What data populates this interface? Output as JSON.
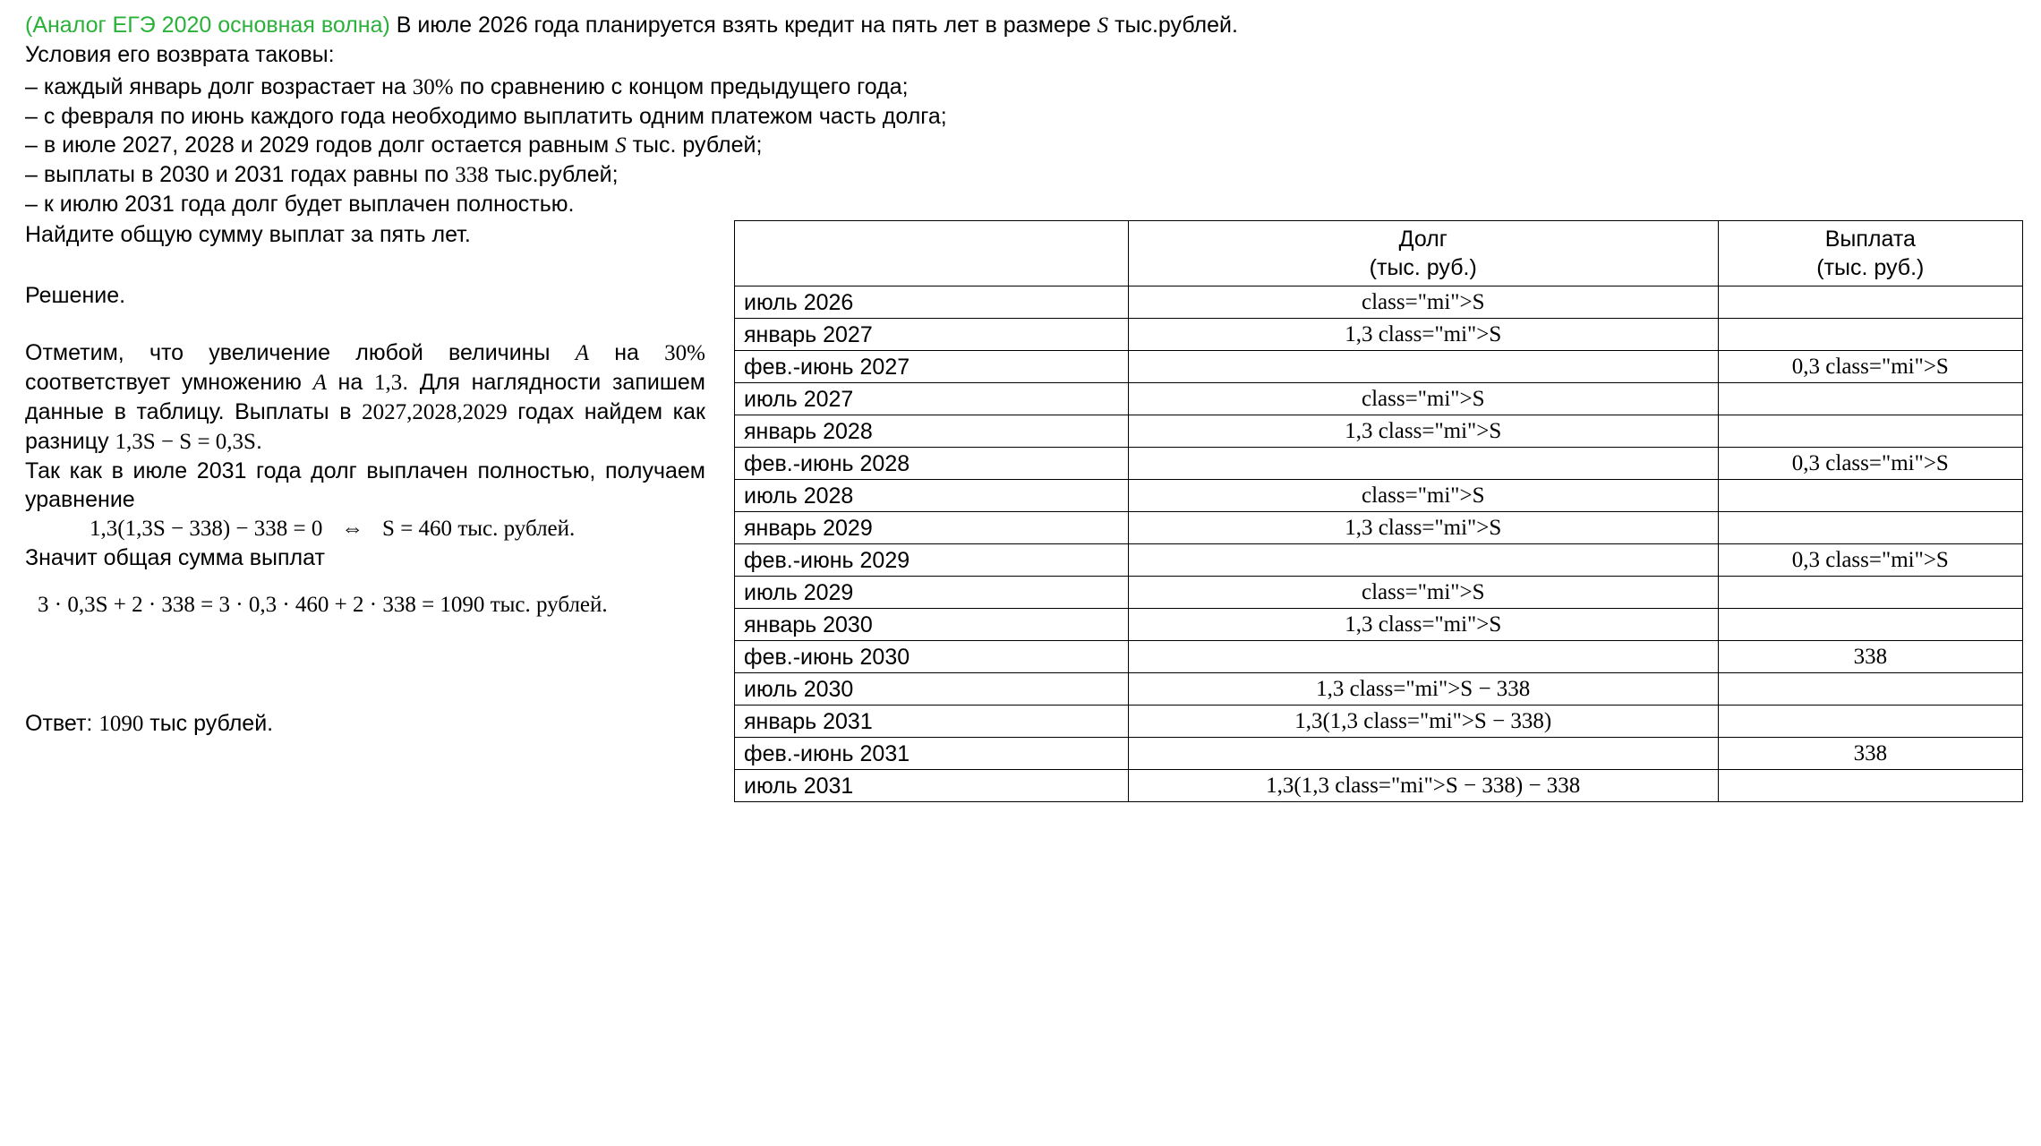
{
  "prefix": "(Аналог ЕГЭ 2020 основная волна)",
  "intro_a": "В июле 2026 года планируется взять кредит на пять лет в размере ",
  "intro_s": "S",
  "intro_b": " тыс.рублей.",
  "cond_label": "Условия его возврата таковы:",
  "conds": {
    "c1a": "– каждый январь долг возрастает на ",
    "c1p": "30%",
    "c1b": " по сравнению с концом предыдущего года;",
    "c2": "– с февраля по июнь каждого года необходимо выплатить одним платежом часть долга;",
    "c3a": "– в июле 2027, 2028 и 2029 годов долг остается равным ",
    "c3s": "S",
    "c3b": " тыс. рублей;",
    "c4a": "– выплаты в 2030 и 2031 годах равны по ",
    "c4n": "338",
    "c4b": " тыс.рублей;",
    "c5": "– к июлю 2031 года долг будет выплачен полностью."
  },
  "task": "Найдите общую сумму выплат за пять лет.",
  "solution_label": "Решение.",
  "para1_a": "Отметим, что увеличение любой величины ",
  "para1_A1": "A",
  "para1_b": " на ",
  "para1_p": "30%",
  "para1_c": " соответствует умножению ",
  "para1_A2": "A",
  "para1_d": " на ",
  "para1_k": "1,3",
  "para1_e": ". Для наглядности запишем данные в таблицу. Выплаты в ",
  "para1_yrs": "2027,2028,2029",
  "para1_f": " годах найдем как разницу ",
  "para1_diff": "1,3S − S = 0,3S",
  "para1_dot": ".",
  "para2": "Так как в июле 2031 года долг выплачен полностью, получаем уравнение",
  "eq1_a": "1,3(1,3S − 338) − 338 = 0",
  "eq1_iff": "⇔",
  "eq1_b": "S = 460",
  "eq1_c": " тыс. рублей.",
  "para3": "Значит общая сумма выплат",
  "eq2_a": "3 · 0,3S + 2 · 338 = 3 · 0,3 · 460 + 2 · 338 = 1090",
  "eq2_b": " тыс. рублей.",
  "answer_a": "Ответ: ",
  "answer_n": "1090",
  "answer_b": " тыс рублей.",
  "table": {
    "h2a": "Долг",
    "h2b": "(тыс. руб.)",
    "h3a": "Выплата",
    "h3b": "(тыс. руб.)",
    "rows": [
      {
        "p": "июль 2026",
        "d": "S",
        "v": ""
      },
      {
        "p": "январь 2027",
        "d": "1,3S",
        "v": ""
      },
      {
        "p": "фев.-июнь 2027",
        "d": "",
        "v": "0,3S"
      },
      {
        "p": "июль 2027",
        "d": "S",
        "v": ""
      },
      {
        "p": "январь 2028",
        "d": "1,3S",
        "v": ""
      },
      {
        "p": "фев.-июнь 2028",
        "d": "",
        "v": "0,3S"
      },
      {
        "p": "июль 2028",
        "d": "S",
        "v": ""
      },
      {
        "p": "январь 2029",
        "d": "1,3S",
        "v": ""
      },
      {
        "p": "фев.-июнь 2029",
        "d": "",
        "v": "0,3S"
      },
      {
        "p": "июль 2029",
        "d": "S",
        "v": ""
      },
      {
        "p": "январь 2030",
        "d": "1,3S",
        "v": ""
      },
      {
        "p": "фев.-июнь 2030",
        "d": "",
        "v": "338"
      },
      {
        "p": "июль 2030",
        "d": "1,3S − 338",
        "v": ""
      },
      {
        "p": "январь 2031",
        "d": "1,3(1,3S − 338)",
        "v": ""
      },
      {
        "p": "фев.-июнь 2031",
        "d": "",
        "v": "338"
      },
      {
        "p": "июль 2031",
        "d": "1,3(1,3S − 338) − 338",
        "v": ""
      }
    ]
  }
}
